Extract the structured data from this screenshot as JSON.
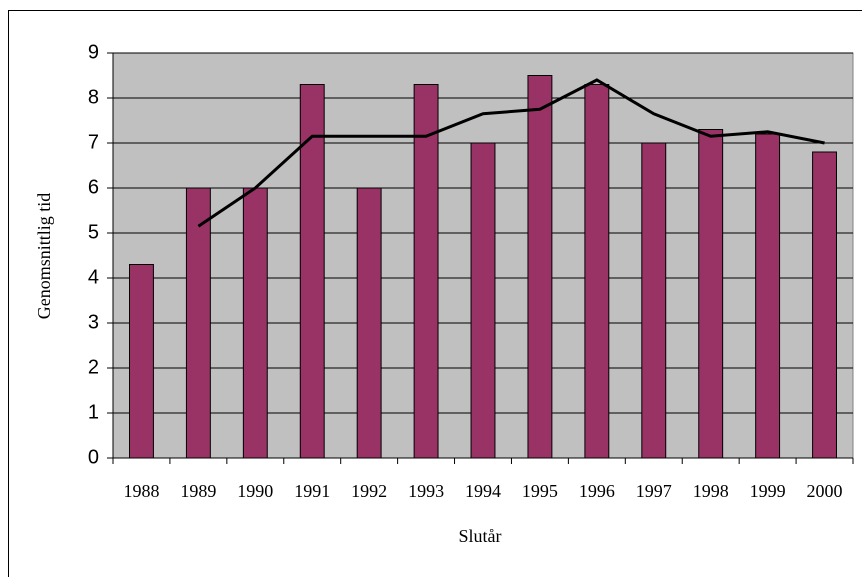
{
  "chart_data": {
    "type": "bar",
    "categories": [
      "1988",
      "1989",
      "1990",
      "1991",
      "1992",
      "1993",
      "1994",
      "1995",
      "1996",
      "1997",
      "1998",
      "1999",
      "2000"
    ],
    "series": [
      {
        "type": "bar",
        "color": "#993366",
        "values": [
          4.3,
          6,
          6,
          8.3,
          6,
          8.3,
          7,
          8.5,
          8.3,
          7,
          7.3,
          7.2,
          6.8
        ]
      },
      {
        "type": "line",
        "color": "#000000",
        "values": [
          null,
          5.15,
          6,
          7.15,
          7.15,
          7.15,
          7.65,
          7.75,
          8.4,
          7.65,
          7.15,
          7.25,
          7.0
        ]
      }
    ],
    "xlabel": "Slutår",
    "ylabel": "Genomsnittlig tid",
    "ylim": [
      0,
      9
    ],
    "yticks": [
      0,
      1,
      2,
      3,
      4,
      5,
      6,
      7,
      8,
      9
    ],
    "grid": true,
    "plot_background": "#c0c0c0"
  }
}
